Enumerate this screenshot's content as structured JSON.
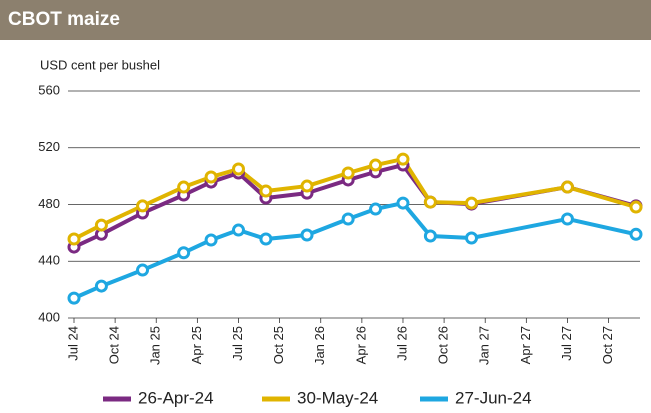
{
  "chart_data": {
    "type": "line",
    "title": "CBOT maize",
    "y_label": "USD cent per bushel",
    "x": [
      "2024-07",
      "2024-09",
      "2024-12",
      "2025-03",
      "2025-05",
      "2025-07",
      "2025-09",
      "2025-12",
      "2026-03",
      "2026-05",
      "2026-07",
      "2026-09",
      "2026-12",
      "2027-07",
      "2027-12"
    ],
    "xlim": [
      "2024-07",
      "2027-12"
    ],
    "xticks": [
      {
        "value": "2024-07",
        "label": "Jul 24"
      },
      {
        "value": "2024-10",
        "label": "Oct 24"
      },
      {
        "value": "2025-01",
        "label": "Jan 25"
      },
      {
        "value": "2025-04",
        "label": "Apr 25"
      },
      {
        "value": "2025-07",
        "label": "Jul 25"
      },
      {
        "value": "2025-10",
        "label": "Oct 25"
      },
      {
        "value": "2026-01",
        "label": "Jan 26"
      },
      {
        "value": "2026-04",
        "label": "Apr 26"
      },
      {
        "value": "2026-07",
        "label": "Jul 26"
      },
      {
        "value": "2026-10",
        "label": "Oct 26"
      },
      {
        "value": "2027-01",
        "label": "Jan 27"
      },
      {
        "value": "2027-04",
        "label": "Apr 27"
      },
      {
        "value": "2027-07",
        "label": "Jul 27"
      },
      {
        "value": "2027-10",
        "label": "Oct 27"
      }
    ],
    "ylim": [
      400,
      560
    ],
    "yticks": [
      400,
      440,
      480,
      520,
      560
    ],
    "grid": true,
    "series": [
      {
        "name": "26-Apr-24",
        "color": "#7b2a82",
        "values": [
          450,
          459,
          474,
          486.7,
          495.8,
          502.2,
          484.6,
          488,
          497.3,
          503,
          507.8,
          481.7,
          480.3,
          492.3,
          479
        ]
      },
      {
        "name": "30-May-24",
        "color": "#e0b400",
        "values": [
          455.7,
          465.5,
          479,
          492.3,
          499.4,
          505,
          489.5,
          493,
          502.2,
          507.8,
          512,
          481.7,
          481,
          492.3,
          478.2
        ]
      },
      {
        "name": "27-Jun-24",
        "color": "#1ea7e1",
        "values": [
          414,
          422.5,
          433.8,
          446,
          455,
          462,
          455.7,
          458.5,
          469.8,
          476.8,
          481,
          457.8,
          456.4,
          469.8,
          459
        ]
      }
    ]
  }
}
